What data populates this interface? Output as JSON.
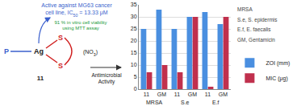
{
  "chart_data": {
    "type": "bar",
    "categories": [
      "11",
      "GM",
      "11",
      "GM",
      "11",
      "GM"
    ],
    "group_labels": [
      "MRSA",
      "S.e",
      "E.f"
    ],
    "series": [
      {
        "name": "ZOI (mm)",
        "color": "#4a8fe0",
        "values": [
          25,
          33,
          25,
          30,
          32,
          27
        ]
      },
      {
        "name": "MIC (μg)",
        "color": "#c0304d",
        "values": [
          7,
          10,
          7,
          30,
          1,
          30
        ]
      }
    ],
    "ylim": [
      0,
      35
    ],
    "yticks": [
      0,
      5,
      10,
      15,
      20,
      25,
      30,
      35
    ],
    "grid": true,
    "legend": "right",
    "annotations": [
      "MRSA",
      "S.e, S. epidermis",
      "E.f, E. faecalis",
      "GM, Gentamicin"
    ]
  },
  "diagram": {
    "activity_text": [
      [
        {
          "text": "Active against MG63 cancer"
        }
      ],
      [
        {
          "text": "cell line, IC"
        },
        {
          "text": "50",
          "sub": true
        },
        {
          "text": " = 13.33 μM"
        }
      ]
    ],
    "viability_text": [
      "91 % in vitro cell viability",
      "using MTT assay"
    ],
    "atoms": {
      "P": "P",
      "Ag": "Ag",
      "S1": "S",
      "S2": "S"
    },
    "counter_ion": [
      {
        "text": "(NO"
      },
      {
        "text": "3",
        "sub": true
      },
      {
        "text": ")"
      }
    ],
    "compound": "11",
    "arrow_text": [
      "Antimicrobial",
      "Activity"
    ]
  }
}
